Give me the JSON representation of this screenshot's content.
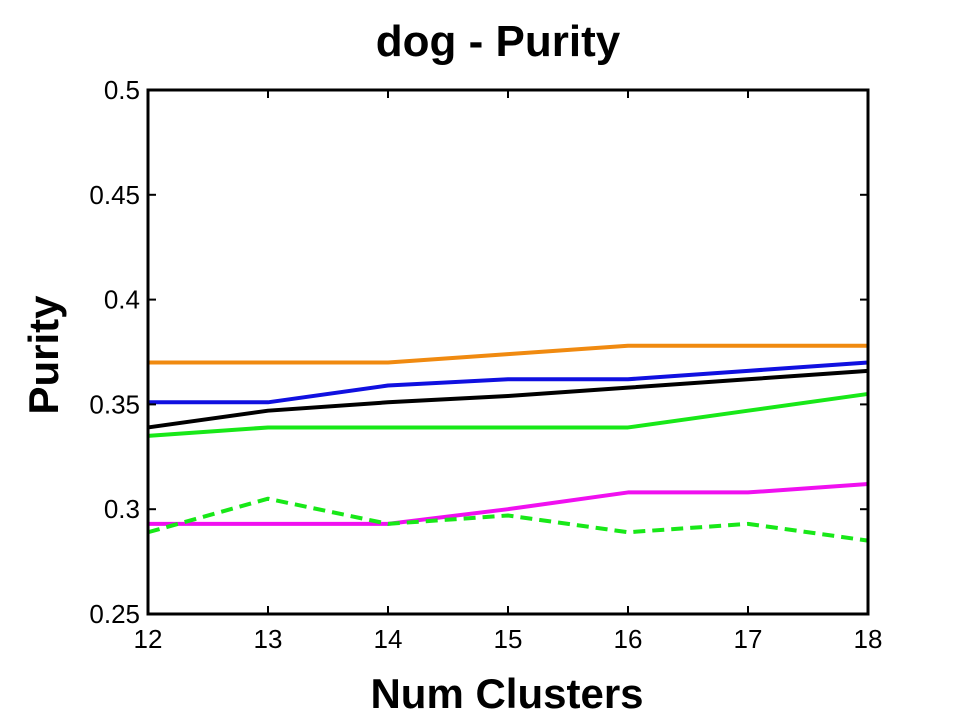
{
  "chart_data": {
    "type": "line",
    "title": "dog - Purity",
    "xlabel": "Num Clusters",
    "ylabel": "Purity",
    "x": [
      12,
      13,
      14,
      15,
      16,
      17,
      18
    ],
    "xlim": [
      12,
      18
    ],
    "ylim": [
      0.25,
      0.5
    ],
    "xticks": [
      "12",
      "13",
      "14",
      "15",
      "16",
      "17",
      "18"
    ],
    "yticks": [
      "0.25",
      "0.3",
      "0.35",
      "0.4",
      "0.45",
      "0.5"
    ],
    "grid": false,
    "series": [
      {
        "name": "orange",
        "color": "#F08A10",
        "dash": false,
        "values": [
          0.37,
          0.37,
          0.37,
          0.374,
          0.378,
          0.378,
          0.378
        ]
      },
      {
        "name": "blue",
        "color": "#1010E0",
        "dash": false,
        "values": [
          0.351,
          0.351,
          0.359,
          0.362,
          0.362,
          0.366,
          0.37
        ]
      },
      {
        "name": "black",
        "color": "#000000",
        "dash": false,
        "values": [
          0.339,
          0.347,
          0.351,
          0.354,
          0.358,
          0.362,
          0.366
        ]
      },
      {
        "name": "green",
        "color": "#18E818",
        "dash": false,
        "values": [
          0.335,
          0.339,
          0.339,
          0.339,
          0.339,
          0.347,
          0.355
        ]
      },
      {
        "name": "magenta",
        "color": "#F010F0",
        "dash": false,
        "values": [
          0.293,
          0.293,
          0.293,
          0.3,
          0.308,
          0.308,
          0.312
        ]
      },
      {
        "name": "green-dashed",
        "color": "#18E818",
        "dash": true,
        "values": [
          0.289,
          0.305,
          0.293,
          0.297,
          0.289,
          0.293,
          0.285
        ]
      }
    ]
  }
}
